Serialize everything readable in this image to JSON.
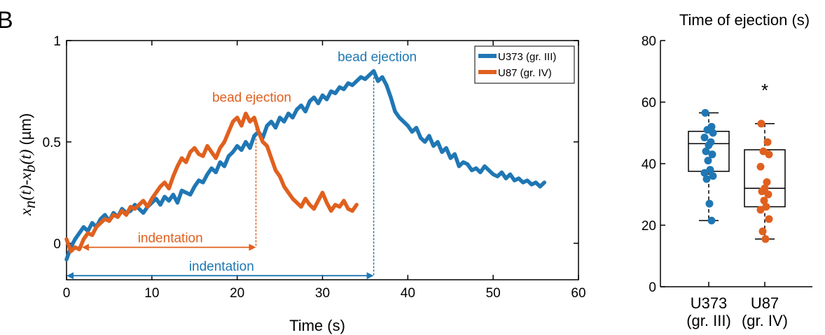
{
  "panel_label": "B",
  "colors": {
    "u373": "#1f77b4",
    "u87": "#e0601e",
    "axis": "#000000"
  },
  "chart_data": [
    {
      "type": "line",
      "xlabel": "Time (s)",
      "ylabel": "x_n(t)-x_b(t) (µm)",
      "ylabel_parts": {
        "x1": "x",
        "s1": "n",
        "t1": "(t)-",
        "x2": "x",
        "s2": "b",
        "t2": "(t)",
        "unit": " (µm)"
      },
      "xlim": [
        0,
        60
      ],
      "ylim": [
        -0.18,
        1.0
      ],
      "xticks": [
        0,
        10,
        20,
        30,
        40,
        50,
        60
      ],
      "yticks": [
        0,
        0.5,
        1
      ],
      "ytick_labels": [
        "0",
        "0.5",
        "1"
      ],
      "legend_position": "top-right",
      "series": [
        {
          "name": "U373 (gr. III)",
          "color": "#1f77b4",
          "x": [
            0,
            0.5,
            1,
            1.5,
            2,
            2.5,
            3,
            3.5,
            4,
            4.5,
            5,
            5.5,
            6,
            6.5,
            7,
            7.5,
            8,
            8.5,
            9,
            9.5,
            10,
            10.5,
            11,
            11.5,
            12,
            12.5,
            13,
            13.5,
            14,
            14.5,
            15,
            15.5,
            16,
            16.5,
            17,
            17.5,
            18,
            18.5,
            19,
            19.5,
            20,
            20.5,
            21,
            21.5,
            22,
            22.5,
            23,
            23.5,
            24,
            24.5,
            25,
            25.5,
            26,
            26.5,
            27,
            27.5,
            28,
            28.5,
            29,
            29.5,
            30,
            30.5,
            31,
            31.5,
            32,
            32.5,
            33,
            33.5,
            34,
            34.5,
            35,
            35.5,
            36,
            36.5,
            37,
            37.5,
            38,
            38.5,
            39,
            39.5,
            40,
            40.5,
            41,
            41.5,
            42,
            42.5,
            43,
            43.5,
            44,
            44.5,
            45,
            45.5,
            46,
            46.5,
            47,
            47.5,
            48,
            48.5,
            49,
            49.5,
            50,
            50.5,
            51,
            51.5,
            52,
            52.5,
            53,
            53.5,
            54,
            54.5,
            55,
            55.5,
            56
          ],
          "y": [
            -0.08,
            -0.02,
            0.02,
            0.05,
            0.08,
            0.06,
            0.1,
            0.08,
            0.12,
            0.14,
            0.11,
            0.15,
            0.13,
            0.17,
            0.15,
            0.16,
            0.19,
            0.17,
            0.15,
            0.18,
            0.2,
            0.22,
            0.19,
            0.23,
            0.21,
            0.24,
            0.2,
            0.26,
            0.25,
            0.24,
            0.28,
            0.31,
            0.3,
            0.34,
            0.37,
            0.35,
            0.4,
            0.38,
            0.43,
            0.45,
            0.48,
            0.46,
            0.5,
            0.47,
            0.53,
            0.55,
            0.52,
            0.58,
            0.6,
            0.57,
            0.62,
            0.6,
            0.64,
            0.62,
            0.66,
            0.68,
            0.65,
            0.7,
            0.72,
            0.69,
            0.73,
            0.71,
            0.75,
            0.74,
            0.77,
            0.76,
            0.79,
            0.78,
            0.8,
            0.82,
            0.81,
            0.83,
            0.85,
            0.8,
            0.82,
            0.78,
            0.72,
            0.65,
            0.62,
            0.6,
            0.58,
            0.55,
            0.57,
            0.52,
            0.5,
            0.53,
            0.48,
            0.5,
            0.45,
            0.47,
            0.42,
            0.44,
            0.38,
            0.4,
            0.39,
            0.36,
            0.37,
            0.35,
            0.38,
            0.36,
            0.34,
            0.33,
            0.35,
            0.32,
            0.34,
            0.31,
            0.32,
            0.3,
            0.31,
            0.29,
            0.3,
            0.28,
            0.3
          ]
        },
        {
          "name": "U87 (gr. IV)",
          "color": "#e0601e",
          "x": [
            0,
            0.5,
            1,
            1.5,
            2,
            2.5,
            3,
            3.5,
            4,
            4.5,
            5,
            5.5,
            6,
            6.5,
            7,
            7.5,
            8,
            8.5,
            9,
            9.5,
            10,
            10.5,
            11,
            11.5,
            12,
            12.5,
            13,
            13.5,
            14,
            14.5,
            15,
            15.5,
            16,
            16.5,
            17,
            17.5,
            18,
            18.5,
            19,
            19.5,
            20,
            20.5,
            21,
            21.5,
            22,
            22.5,
            23,
            23.5,
            24,
            24.5,
            25,
            25.5,
            26,
            26.5,
            27,
            27.5,
            28,
            28.5,
            29,
            29.5,
            30,
            30.5,
            31,
            31.5,
            32,
            32.5,
            33,
            33.5,
            34
          ],
          "y": [
            0.02,
            -0.04,
            -0.02,
            -0.03,
            0.02,
            0.05,
            0.04,
            0.08,
            0.1,
            0.12,
            0.11,
            0.14,
            0.13,
            0.16,
            0.14,
            0.18,
            0.17,
            0.19,
            0.21,
            0.18,
            0.22,
            0.25,
            0.28,
            0.3,
            0.27,
            0.33,
            0.38,
            0.42,
            0.4,
            0.45,
            0.47,
            0.44,
            0.43,
            0.48,
            0.45,
            0.42,
            0.47,
            0.5,
            0.55,
            0.6,
            0.62,
            0.58,
            0.64,
            0.6,
            0.62,
            0.55,
            0.5,
            0.48,
            0.42,
            0.36,
            0.33,
            0.28,
            0.25,
            0.22,
            0.2,
            0.18,
            0.22,
            0.19,
            0.17,
            0.21,
            0.25,
            0.2,
            0.16,
            0.19,
            0.18,
            0.21,
            0.17,
            0.16,
            0.19
          ]
        }
      ],
      "annotations": [
        {
          "text": "bead ejection",
          "color": "#1f77b4",
          "x": 36,
          "y": 0.84
        },
        {
          "text": "bead ejection",
          "color": "#e0601e",
          "x": 22.2,
          "y": 0.64
        },
        {
          "text": "indentation",
          "color": "#e0601e",
          "x_start": 1.8,
          "x_end": 22.2,
          "y": -0.02
        },
        {
          "text": "indentation",
          "color": "#1f77b4",
          "x_start": 0,
          "x_end": 36,
          "y": -0.16
        }
      ]
    },
    {
      "type": "box",
      "title": "Time of ejection (s)",
      "ylim": [
        0,
        80
      ],
      "yticks": [
        0,
        20,
        40,
        60,
        80
      ],
      "categories": [
        {
          "line1": "U373",
          "line2": "(gr. III)"
        },
        {
          "line1": "U87",
          "line2": "(gr. IV)"
        }
      ],
      "significance": "*",
      "boxes": [
        {
          "name": "U373 (gr. III)",
          "color": "#1f77b4",
          "min": 21.5,
          "q1": 37.5,
          "median": 46.5,
          "q3": 50.5,
          "max": 56.5,
          "points": [
            56.5,
            52,
            51,
            50,
            48.5,
            47,
            46,
            44,
            43,
            41,
            38,
            37,
            36,
            35,
            27,
            21.5
          ]
        },
        {
          "name": "U87 (gr. IV)",
          "color": "#e0601e",
          "min": 15.5,
          "q1": 26,
          "median": 32,
          "q3": 44.5,
          "max": 53,
          "points": [
            53,
            47,
            44,
            43,
            39,
            34,
            32,
            31,
            30,
            28,
            26,
            25,
            22,
            18,
            15.5
          ]
        }
      ]
    }
  ]
}
